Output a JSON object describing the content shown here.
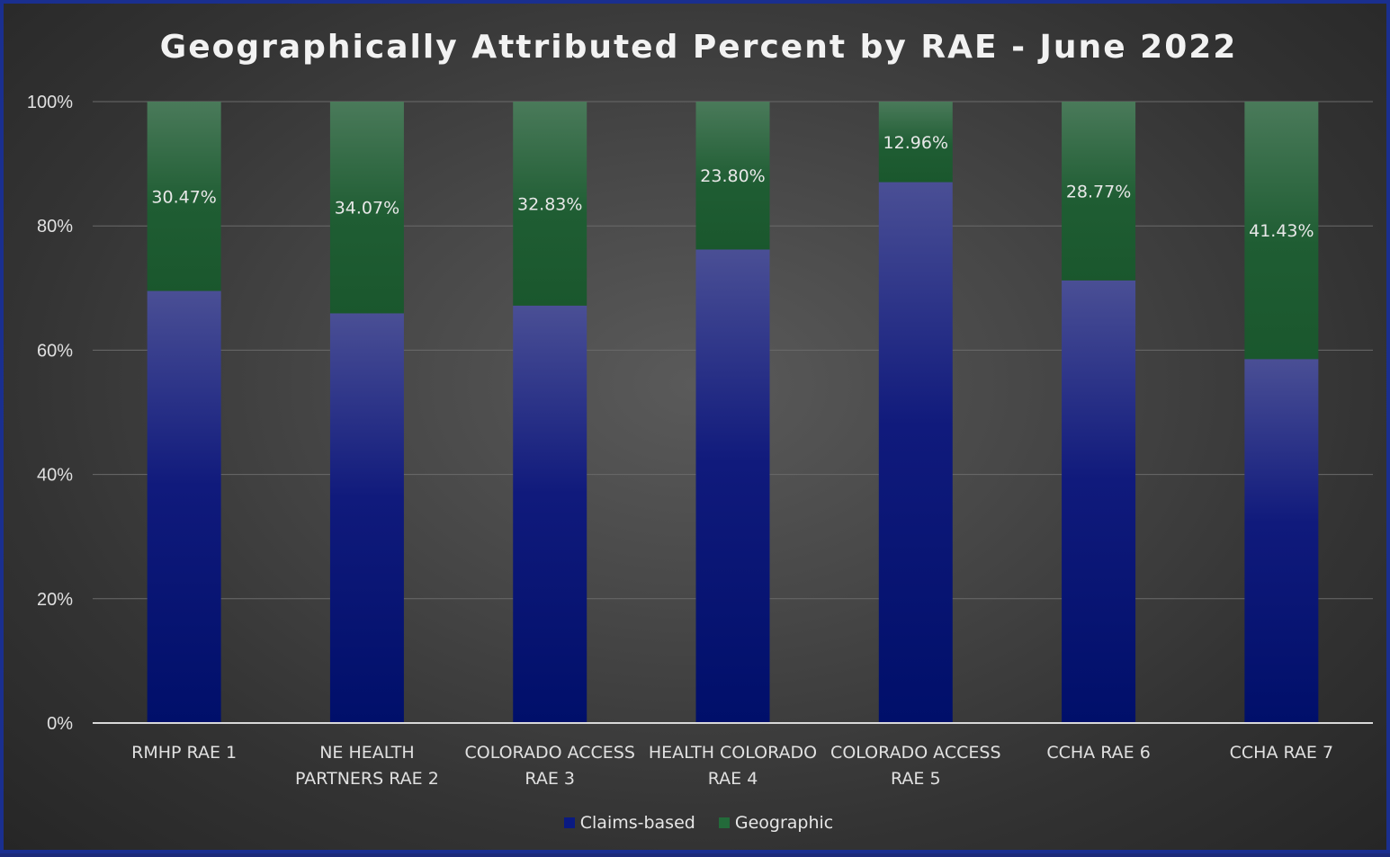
{
  "chart_data": {
    "type": "bar",
    "stacked": true,
    "title": "Geographically Attributed Percent by RAE - June 2022",
    "xlabel": "",
    "ylabel": "",
    "ylim": [
      0,
      100
    ],
    "y_ticks": [
      "0%",
      "20%",
      "40%",
      "60%",
      "80%",
      "100%"
    ],
    "y_tick_values": [
      0,
      20,
      40,
      60,
      80,
      100
    ],
    "grid": true,
    "legend_position": "bottom",
    "categories": [
      [
        "RMHP RAE 1"
      ],
      [
        "NE HEALTH",
        "PARTNERS RAE 2"
      ],
      [
        "COLORADO ACCESS",
        "RAE 3"
      ],
      [
        "HEALTH COLORADO",
        "RAE 4"
      ],
      [
        "COLORADO ACCESS",
        "RAE 5"
      ],
      [
        "CCHA RAE 6"
      ],
      [
        "CCHA RAE 7"
      ]
    ],
    "series": [
      {
        "name": "Claims-based",
        "color": "#001070",
        "values": [
          69.53,
          65.93,
          67.17,
          76.2,
          87.04,
          71.23,
          58.57
        ]
      },
      {
        "name": "Geographic",
        "color": "#1e5e32",
        "values": [
          30.47,
          34.07,
          32.83,
          23.8,
          12.96,
          28.77,
          41.43
        ],
        "data_labels": [
          "30.47%",
          "34.07%",
          "32.83%",
          "23.80%",
          "12.96%",
          "28.77%",
          "41.43%"
        ]
      }
    ]
  },
  "legend": {
    "claims_label": "Claims-based",
    "geographic_label": "Geographic"
  }
}
